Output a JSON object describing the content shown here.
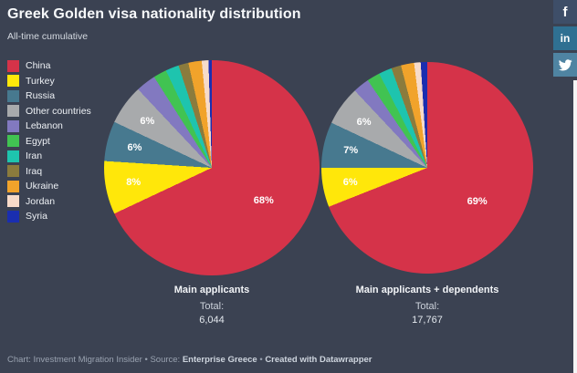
{
  "header": {
    "title": "Greek Golden visa nationality distribution",
    "subtitle": "All-time cumulative"
  },
  "social": {
    "facebook_label": "f",
    "linkedin_label": "in",
    "facebook_color": "#3e4e68",
    "linkedin_color": "#2f7092",
    "twitter_color": "#4f84a2"
  },
  "colors": {
    "background": "#3b4252",
    "title_text": "#f7f9fb",
    "slice_label_text": "#ffffff",
    "footer_text": "#99a2b0"
  },
  "legend": {
    "items": [
      {
        "label": "China",
        "color": "#d53349"
      },
      {
        "label": "Turkey",
        "color": "#ffe70a"
      },
      {
        "label": "Russia",
        "color": "#47798f"
      },
      {
        "label": "Other countries",
        "color": "#a8aaac"
      },
      {
        "label": "Lebanon",
        "color": "#8279c0"
      },
      {
        "label": "Egypt",
        "color": "#41c352"
      },
      {
        "label": "Iran",
        "color": "#1ec4ae"
      },
      {
        "label": "Iraq",
        "color": "#8b7b3d"
      },
      {
        "label": "Ukraine",
        "color": "#f1a32b"
      },
      {
        "label": "Jordan",
        "color": "#f7dbc9"
      },
      {
        "label": "Syria",
        "color": "#1a2eb0"
      }
    ]
  },
  "chart_data": [
    {
      "type": "pie",
      "title": "Main applicants",
      "total_label": "Total:",
      "total": "6,044",
      "categories": [
        "China",
        "Turkey",
        "Russia",
        "Other countries",
        "Lebanon",
        "Egypt",
        "Iran",
        "Iraq",
        "Ukraine",
        "Jordan",
        "Syria"
      ],
      "values": [
        68,
        8,
        6,
        6,
        3,
        2,
        2,
        1.5,
        2,
        1,
        0.5
      ],
      "slice_labels": [
        "68%",
        "8%",
        "6%",
        "6%",
        "",
        "",
        "",
        "",
        "",
        "",
        ""
      ],
      "legend_position": "left",
      "start_angle_deg": 0,
      "direction": "clockwise"
    },
    {
      "type": "pie",
      "title": "Main applicants + dependents",
      "total_label": "Total:",
      "total": "17,767",
      "categories": [
        "China",
        "Turkey",
        "Russia",
        "Other countries",
        "Lebanon",
        "Egypt",
        "Iran",
        "Iraq",
        "Ukraine",
        "Jordan",
        "Syria"
      ],
      "values": [
        69,
        6,
        7,
        6,
        2.5,
        2,
        2,
        1.5,
        2,
        1,
        1
      ],
      "slice_labels": [
        "69%",
        "6%",
        "7%",
        "6%",
        "",
        "",
        "",
        "",
        "",
        "",
        ""
      ],
      "legend_position": "left",
      "start_angle_deg": 0,
      "direction": "clockwise"
    }
  ],
  "footer": {
    "chart_credit": "Chart: Investment Migration Insider",
    "separator": " • ",
    "source_label": "Source: ",
    "source": "Enterprise Greece",
    "created": "Created with Datawrapper"
  }
}
